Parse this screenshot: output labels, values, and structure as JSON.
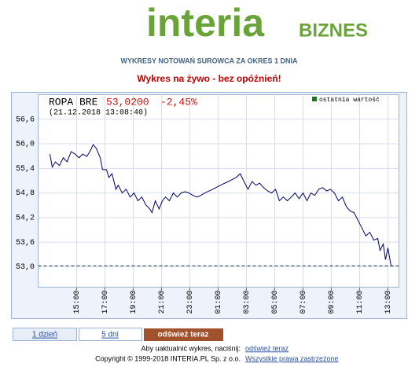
{
  "header": {
    "logo_main": "interia",
    "logo_sub": "BIZNES",
    "heading": "WYKRESY NOTOWAŃ SUROWCA ZA OKRES 1 DNIA",
    "subheading": "Wykres na żywo - bez opóźnień!"
  },
  "chart_data": {
    "type": "line",
    "title": "ROPA BRE",
    "price": "53,0200",
    "change": "-2,45%",
    "timestamp": "(21.12.2018 13:08:40)",
    "last_value_label": "ostatnia wartość",
    "last_value_color": "#1a7a1a",
    "xlim": [
      12.28,
      37.78
    ],
    "ylim": [
      52.5,
      57.2
    ],
    "grid": true,
    "xticks": [
      {
        "value": 15,
        "label": "15:00"
      },
      {
        "value": 17,
        "label": "17:00"
      },
      {
        "value": 19,
        "label": "19:00"
      },
      {
        "value": 21,
        "label": "21:00"
      },
      {
        "value": 23,
        "label": "23:00"
      },
      {
        "value": 25,
        "label": "01:00"
      },
      {
        "value": 27,
        "label": "03:00"
      },
      {
        "value": 29,
        "label": "05:00"
      },
      {
        "value": 31,
        "label": "07:00"
      },
      {
        "value": 33,
        "label": "09:00"
      },
      {
        "value": 35,
        "label": "11:00"
      },
      {
        "value": 37,
        "label": "13:00"
      }
    ],
    "yticks": [
      {
        "value": 53.0,
        "label": "53,0"
      },
      {
        "value": 53.6,
        "label": "53,6"
      },
      {
        "value": 54.2,
        "label": "54,2"
      },
      {
        "value": 54.8,
        "label": "54,8"
      },
      {
        "value": 55.4,
        "label": "55,4"
      },
      {
        "value": 56.0,
        "label": "56,0"
      },
      {
        "value": 56.6,
        "label": "56,6"
      }
    ],
    "series": [
      {
        "color": "#000066",
        "x": [
          13.11,
          13.28,
          13.5,
          13.78,
          14.06,
          14.33,
          14.61,
          14.89,
          15.17,
          15.44,
          15.72,
          16.0,
          16.17,
          16.39,
          16.67,
          16.83,
          17.11,
          17.28,
          17.5,
          17.78,
          17.94,
          18.22,
          18.5,
          18.78,
          19.06,
          19.33,
          19.61,
          19.89,
          20.17,
          20.33,
          20.56,
          20.83,
          21.06,
          21.28,
          21.56,
          21.83,
          22.11,
          22.39,
          22.67,
          22.94,
          23.22,
          23.5,
          23.78,
          24.06,
          24.61,
          25.17,
          25.72,
          26.28,
          26.56,
          26.83,
          27.11,
          27.39,
          27.67,
          27.94,
          28.22,
          28.5,
          28.78,
          29.06,
          29.33,
          29.61,
          29.89,
          30.17,
          30.44,
          30.72,
          31.0,
          31.28,
          31.56,
          31.83,
          32.11,
          32.39,
          32.67,
          32.94,
          33.22,
          33.5,
          33.78,
          34.06,
          34.33,
          34.61,
          34.89,
          35.17,
          35.44,
          35.72,
          36.0,
          36.28,
          36.44,
          36.67,
          36.83,
          37.0,
          37.22,
          37.39
        ],
        "values": [
          55.75,
          55.43,
          55.56,
          55.47,
          55.66,
          55.56,
          55.81,
          55.75,
          55.66,
          55.75,
          55.69,
          55.85,
          55.98,
          55.89,
          55.66,
          55.37,
          55.37,
          55.18,
          55.27,
          54.89,
          54.99,
          54.8,
          54.89,
          54.7,
          54.8,
          54.61,
          54.7,
          54.51,
          54.41,
          54.32,
          54.61,
          54.41,
          54.61,
          54.7,
          54.61,
          54.8,
          54.7,
          54.8,
          54.83,
          54.8,
          54.74,
          54.7,
          54.74,
          54.8,
          54.89,
          54.99,
          55.08,
          55.18,
          55.27,
          55.08,
          54.89,
          55.08,
          54.99,
          55.04,
          54.93,
          54.85,
          54.8,
          54.89,
          54.61,
          54.7,
          54.61,
          54.7,
          54.8,
          54.66,
          54.8,
          54.61,
          54.8,
          54.74,
          54.89,
          54.93,
          54.85,
          54.89,
          54.8,
          54.61,
          54.7,
          54.47,
          54.36,
          54.32,
          54.13,
          53.94,
          53.75,
          53.84,
          53.65,
          53.69,
          53.4,
          53.55,
          53.17,
          53.46,
          53.02,
          53.02
        ]
      }
    ]
  },
  "tabs": [
    "1 dzień",
    "5 dni"
  ],
  "refresh_button": "odśwież teraz",
  "footer": {
    "refresh_prompt": "Aby uaktualnić wykres, naciśnij:",
    "refresh_link": "odśwież teraz",
    "copyright": "Copyright © 1999-2018 INTERIA.PL Sp. z o.o.",
    "rights_link": "Wszystkie prawa zastrzeżone"
  }
}
